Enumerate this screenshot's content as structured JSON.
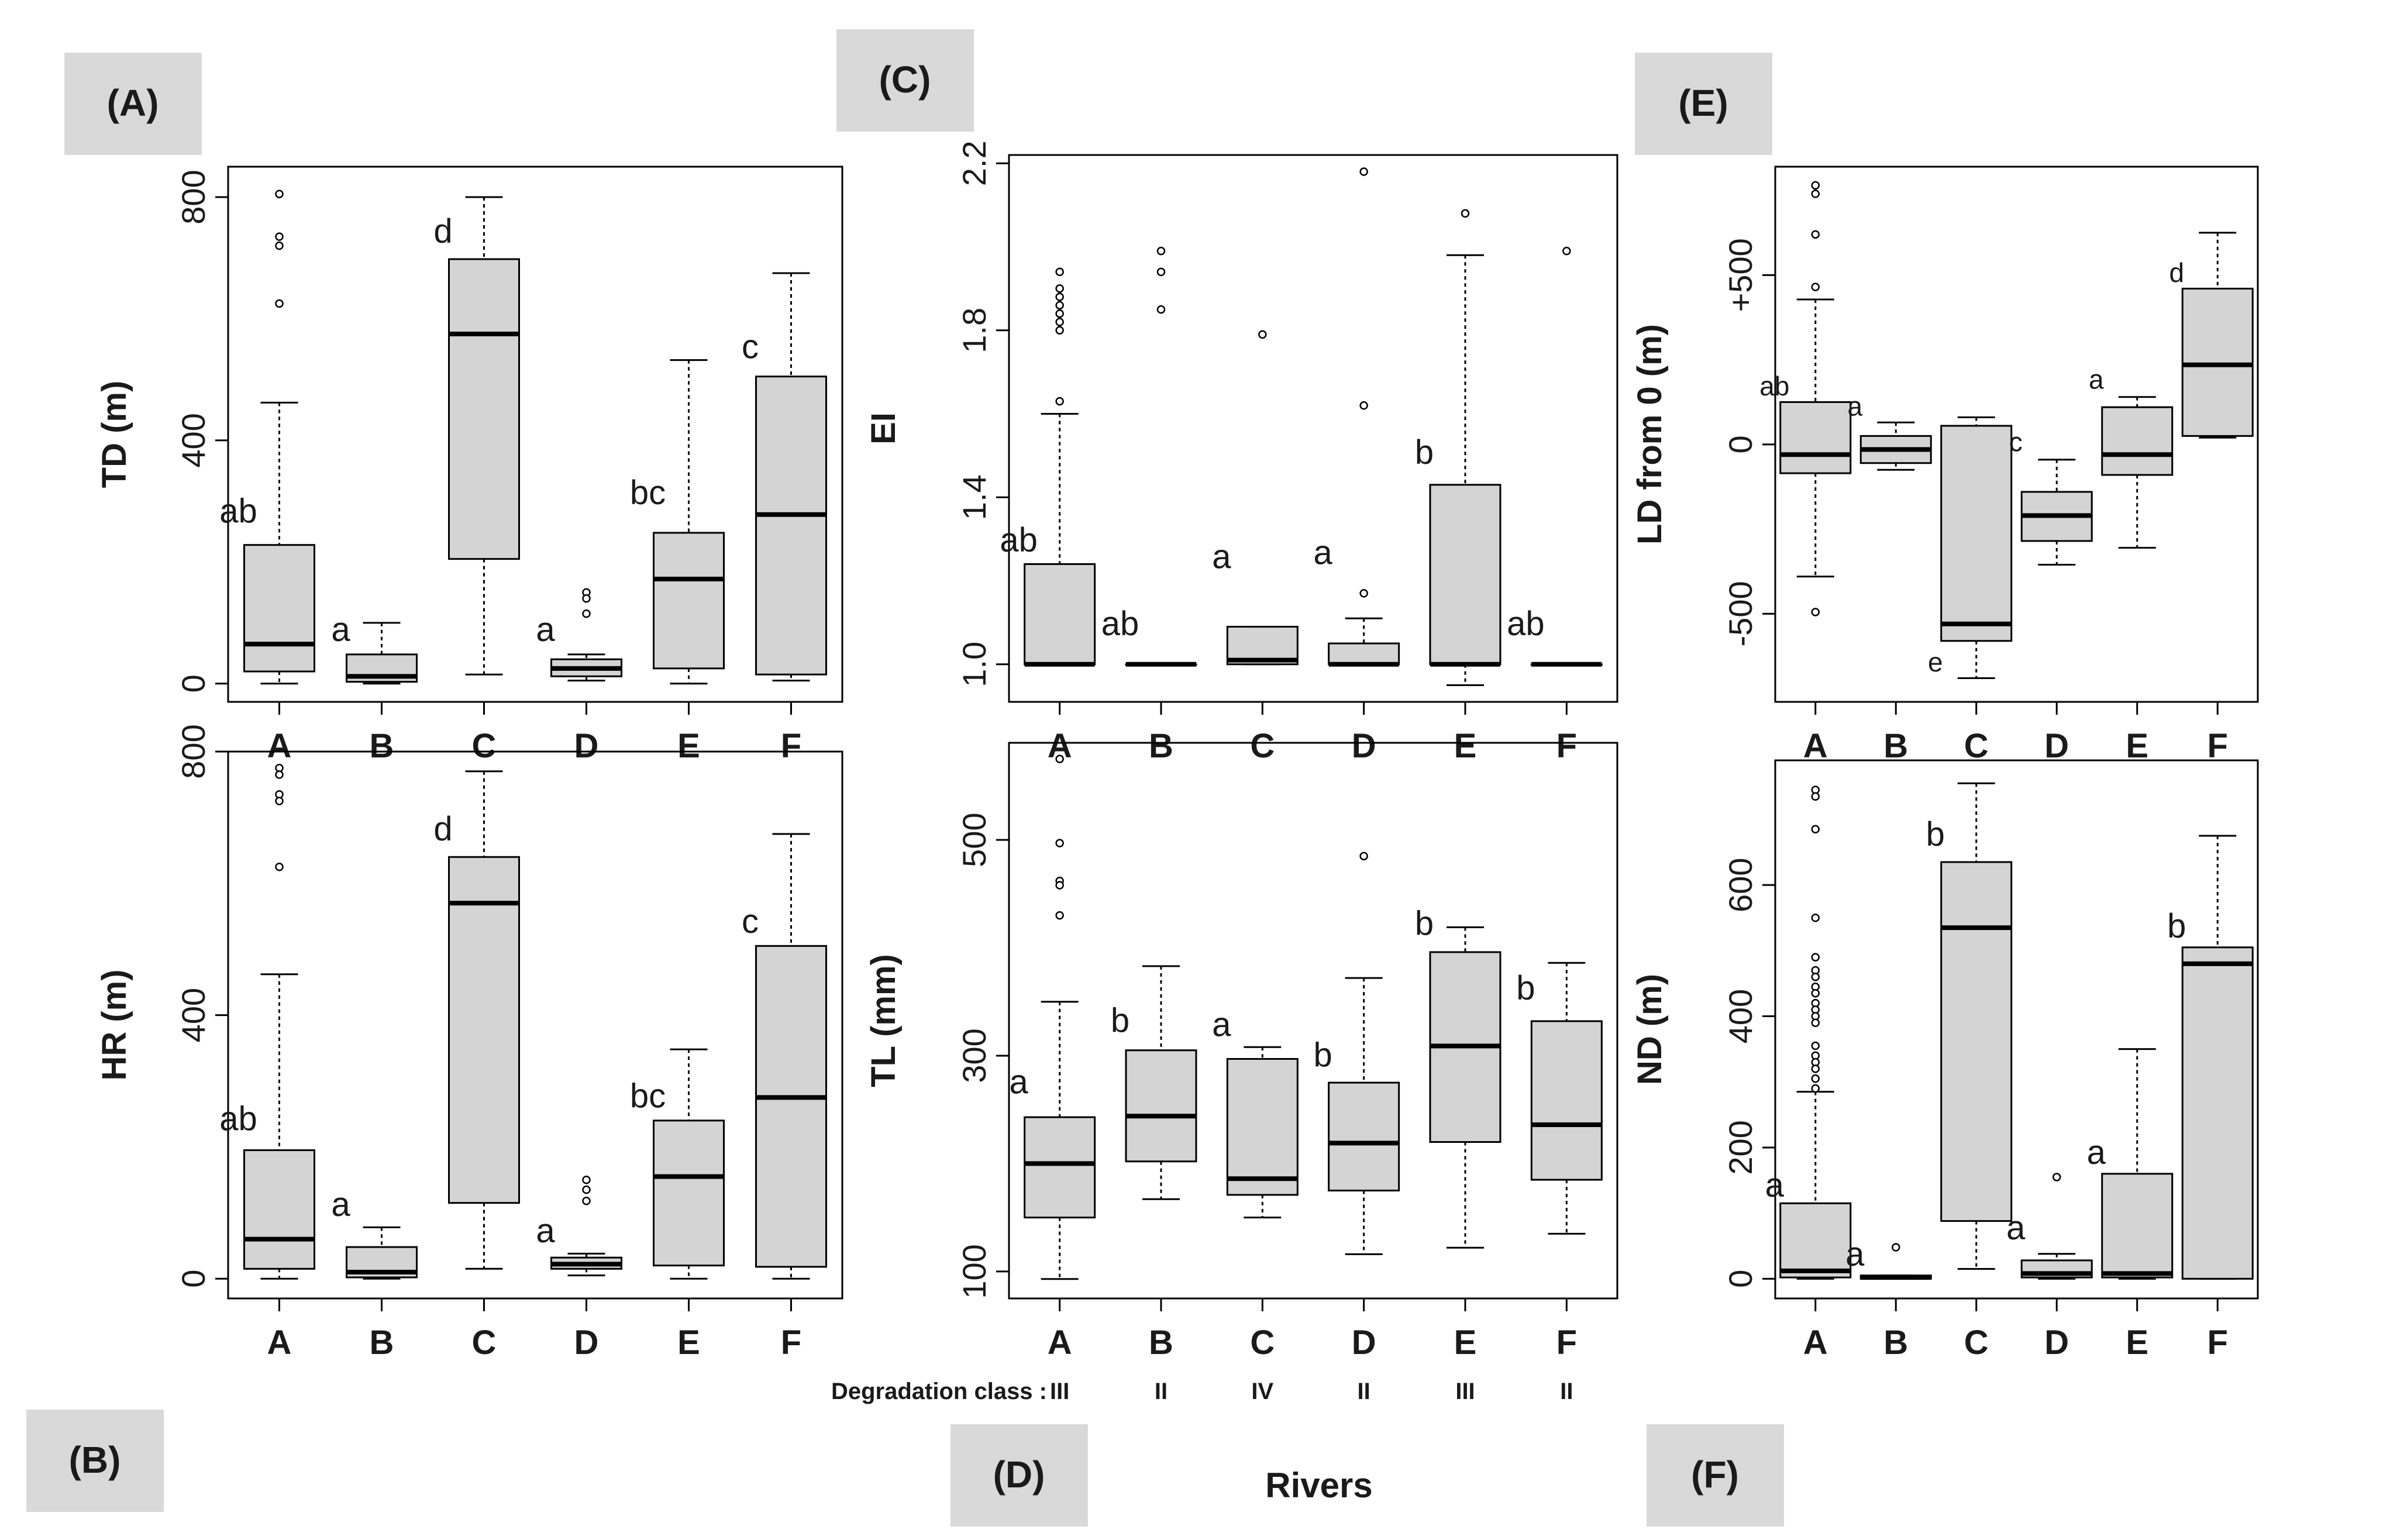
{
  "xlabel": "Rivers",
  "degradation": {
    "label": "Degradation class :",
    "classes": [
      "III",
      "II",
      "IV",
      "II",
      "III",
      "II"
    ]
  },
  "chart_data": [
    {
      "tag": "(A)",
      "type": "boxplot",
      "ylabel": "TD (m)",
      "ylim": [
        -30,
        850
      ],
      "yticks": [
        0,
        400,
        800
      ],
      "ytick_labels": [
        "0",
        "400",
        "800"
      ],
      "categories": [
        "A",
        "B",
        "C",
        "D",
        "E",
        "F"
      ],
      "boxes": [
        {
          "lo": 0,
          "q1": 20,
          "med": 65,
          "q3": 228,
          "hi": 462,
          "outliers": [
            805,
            735,
            720,
            625
          ],
          "letter": "ab",
          "letter_y": 265
        },
        {
          "lo": 0,
          "q1": 3,
          "med": 12,
          "q3": 48,
          "hi": 100,
          "outliers": [],
          "letter": "a",
          "letter_y": 70
        },
        {
          "lo": 15,
          "q1": 205,
          "med": 575,
          "q3": 698,
          "hi": 800,
          "outliers": [],
          "letter": "d",
          "letter_y": 725
        },
        {
          "lo": 5,
          "q1": 12,
          "med": 25,
          "q3": 40,
          "hi": 48,
          "outliers": [
            150,
            140,
            115
          ],
          "letter": "a",
          "letter_y": 70
        },
        {
          "lo": 0,
          "q1": 25,
          "med": 172,
          "q3": 248,
          "hi": 532,
          "outliers": [],
          "letter": "bc",
          "letter_y": 295
        },
        {
          "lo": 5,
          "q1": 15,
          "med": 278,
          "q3": 505,
          "hi": 675,
          "outliers": [],
          "letter": "c",
          "letter_y": 535
        }
      ]
    },
    {
      "tag": "(B)",
      "type": "boxplot",
      "ylabel": "HR (m)",
      "ylim": [
        -30,
        800
      ],
      "yticks": [
        0,
        400,
        800
      ],
      "ytick_labels": [
        "0",
        "400",
        "800"
      ],
      "categories": [
        "A",
        "B",
        "C",
        "D",
        "E",
        "F"
      ],
      "boxes": [
        {
          "lo": 0,
          "q1": 15,
          "med": 60,
          "q3": 195,
          "hi": 462,
          "outliers": [
            775,
            765,
            735,
            725,
            625
          ],
          "letter": "ab",
          "letter_y": 225
        },
        {
          "lo": 0,
          "q1": 2,
          "med": 10,
          "q3": 48,
          "hi": 78,
          "outliers": [],
          "letter": "a",
          "letter_y": 95
        },
        {
          "lo": 15,
          "q1": 115,
          "med": 570,
          "q3": 640,
          "hi": 770,
          "outliers": [],
          "letter": "d",
          "letter_y": 665
        },
        {
          "lo": 5,
          "q1": 15,
          "med": 22,
          "q3": 32,
          "hi": 38,
          "outliers": [
            150,
            135,
            118
          ],
          "letter": "a",
          "letter_y": 55
        },
        {
          "lo": 0,
          "q1": 20,
          "med": 155,
          "q3": 240,
          "hi": 348,
          "outliers": [],
          "letter": "bc",
          "letter_y": 260
        },
        {
          "lo": 0,
          "q1": 18,
          "med": 275,
          "q3": 505,
          "hi": 675,
          "outliers": [],
          "letter": "c",
          "letter_y": 525
        }
      ]
    },
    {
      "tag": "(C)",
      "type": "boxplot",
      "ylabel": "EI",
      "ylim": [
        0.91,
        2.22
      ],
      "yticks": [
        1.0,
        1.4,
        1.8,
        2.2
      ],
      "ytick_labels": [
        "1.0",
        "1.4",
        "1.8",
        "2.2"
      ],
      "categories": [
        "A",
        "B",
        "C",
        "D",
        "E",
        "F"
      ],
      "boxes": [
        {
          "lo": 1.0,
          "q1": 1.0,
          "med": 1.0,
          "q3": 1.24,
          "hi": 1.6,
          "outliers": [
            1.94,
            1.9,
            1.88,
            1.86,
            1.84,
            1.82,
            1.8,
            1.63
          ],
          "letter": "ab",
          "letter_y": 1.27
        },
        {
          "lo": 1.0,
          "q1": 1.0,
          "med": 1.0,
          "q3": 1.0,
          "hi": 1.0,
          "outliers": [
            1.99,
            1.94,
            1.85
          ],
          "letter": "ab",
          "letter_y": 1.07
        },
        {
          "lo": 1.0,
          "q1": 1.0,
          "med": 1.01,
          "q3": 1.09,
          "hi": 1.09,
          "outliers": [
            1.79
          ],
          "letter": "a",
          "letter_y": 1.23
        },
        {
          "lo": 1.0,
          "q1": 1.0,
          "med": 1.0,
          "q3": 1.05,
          "hi": 1.11,
          "outliers": [
            2.18,
            1.62,
            1.17
          ],
          "letter": "a",
          "letter_y": 1.24
        },
        {
          "lo": 0.95,
          "q1": 1.0,
          "med": 1.0,
          "q3": 1.43,
          "hi": 1.98,
          "outliers": [
            2.08
          ],
          "letter": "b",
          "letter_y": 1.48
        },
        {
          "lo": 1.0,
          "q1": 1.0,
          "med": 1.0,
          "q3": 1.0,
          "hi": 1.0,
          "outliers": [
            1.99
          ],
          "letter": "ab",
          "letter_y": 1.07
        }
      ]
    },
    {
      "tag": "(D)",
      "type": "boxplot",
      "ylabel": "TL (mm)",
      "ylim": [
        75,
        590
      ],
      "yticks": [
        100,
        300,
        500
      ],
      "ytick_labels": [
        "100",
        "300",
        "500"
      ],
      "categories": [
        "A",
        "B",
        "C",
        "D",
        "E",
        "F"
      ],
      "boxes": [
        {
          "lo": 93,
          "q1": 150,
          "med": 200,
          "q3": 243,
          "hi": 350,
          "outliers": [
            575,
            497,
            462,
            458,
            430
          ],
          "letter": "a",
          "letter_y": 265
        },
        {
          "lo": 167,
          "q1": 202,
          "med": 244,
          "q3": 305,
          "hi": 383,
          "outliers": [],
          "letter": "b",
          "letter_y": 322
        },
        {
          "lo": 150,
          "q1": 171,
          "med": 186,
          "q3": 297,
          "hi": 308,
          "outliers": [],
          "letter": "a",
          "letter_y": 318
        },
        {
          "lo": 116,
          "q1": 175,
          "med": 219,
          "q3": 275,
          "hi": 372,
          "outliers": [
            485
          ],
          "letter": "b",
          "letter_y": 290
        },
        {
          "lo": 122,
          "q1": 220,
          "med": 309,
          "q3": 396,
          "hi": 419,
          "outliers": [],
          "letter": "b",
          "letter_y": 412
        },
        {
          "lo": 135,
          "q1": 185,
          "med": 236,
          "q3": 332,
          "hi": 386,
          "outliers": [],
          "letter": "b",
          "letter_y": 352
        }
      ]
    },
    {
      "tag": "(E)",
      "type": "boxplot",
      "ylabel": "LD from 0  (m)",
      "ylim": [
        -760,
        820
      ],
      "yticks": [
        -500,
        0,
        500
      ],
      "ytick_labels": [
        "-500",
        "0",
        "+500"
      ],
      "categories": [
        "A",
        "B",
        "C",
        "D",
        "E",
        "F"
      ],
      "boxes": [
        {
          "lo": -390,
          "q1": -85,
          "med": -30,
          "q3": 125,
          "hi": 428,
          "outliers": [
            765,
            740,
            620,
            465,
            -495
          ],
          "letter": "ab",
          "letter_y": 145
        },
        {
          "lo": -75,
          "q1": -55,
          "med": -15,
          "q3": 25,
          "hi": 65,
          "outliers": [],
          "letter": "a",
          "letter_y": 85
        },
        {
          "lo": -690,
          "q1": -580,
          "med": -530,
          "q3": 55,
          "hi": 80,
          "outliers": [],
          "letter": "e",
          "letter_y": -670
        },
        {
          "lo": -355,
          "q1": -285,
          "med": -210,
          "q3": -140,
          "hi": -45,
          "outliers": [],
          "letter": "c",
          "letter_y": -20
        },
        {
          "lo": -305,
          "q1": -90,
          "med": -30,
          "q3": 110,
          "hi": 140,
          "outliers": [],
          "letter": "a",
          "letter_y": 165
        },
        {
          "lo": 20,
          "q1": 25,
          "med": 235,
          "q3": 460,
          "hi": 625,
          "outliers": [],
          "letter": "d",
          "letter_y": 480
        }
      ]
    },
    {
      "tag": "(F)",
      "type": "boxplot",
      "ylabel": "ND (m)",
      "ylim": [
        -30,
        790
      ],
      "yticks": [
        0,
        200,
        400,
        600
      ],
      "ytick_labels": [
        "0",
        "200",
        "400",
        "600"
      ],
      "categories": [
        "A",
        "B",
        "C",
        "D",
        "E",
        "F"
      ],
      "boxes": [
        {
          "lo": 0,
          "q1": 2,
          "med": 12,
          "q3": 115,
          "hi": 285,
          "outliers": [
            745,
            735,
            685,
            550,
            490,
            470,
            460,
            445,
            435,
            420,
            410,
            400,
            390,
            355,
            340,
            330,
            320,
            305,
            290
          ],
          "letter": "a",
          "letter_y": 125
        },
        {
          "lo": 0,
          "q1": 0,
          "med": 2,
          "q3": 5,
          "hi": 5,
          "outliers": [
            48
          ],
          "letter": "a",
          "letter_y": 20
        },
        {
          "lo": 15,
          "q1": 88,
          "med": 535,
          "q3": 635,
          "hi": 755,
          "outliers": [],
          "letter": "b",
          "letter_y": 660
        },
        {
          "lo": 0,
          "q1": 2,
          "med": 8,
          "q3": 28,
          "hi": 38,
          "outliers": [
            155
          ],
          "letter": "a",
          "letter_y": 60
        },
        {
          "lo": 0,
          "q1": 2,
          "med": 8,
          "q3": 160,
          "hi": 350,
          "outliers": [],
          "letter": "a",
          "letter_y": 175
        },
        {
          "lo": 0,
          "q1": 0,
          "med": 480,
          "q3": 505,
          "hi": 675,
          "outliers": [],
          "letter": "b",
          "letter_y": 520
        }
      ]
    }
  ]
}
